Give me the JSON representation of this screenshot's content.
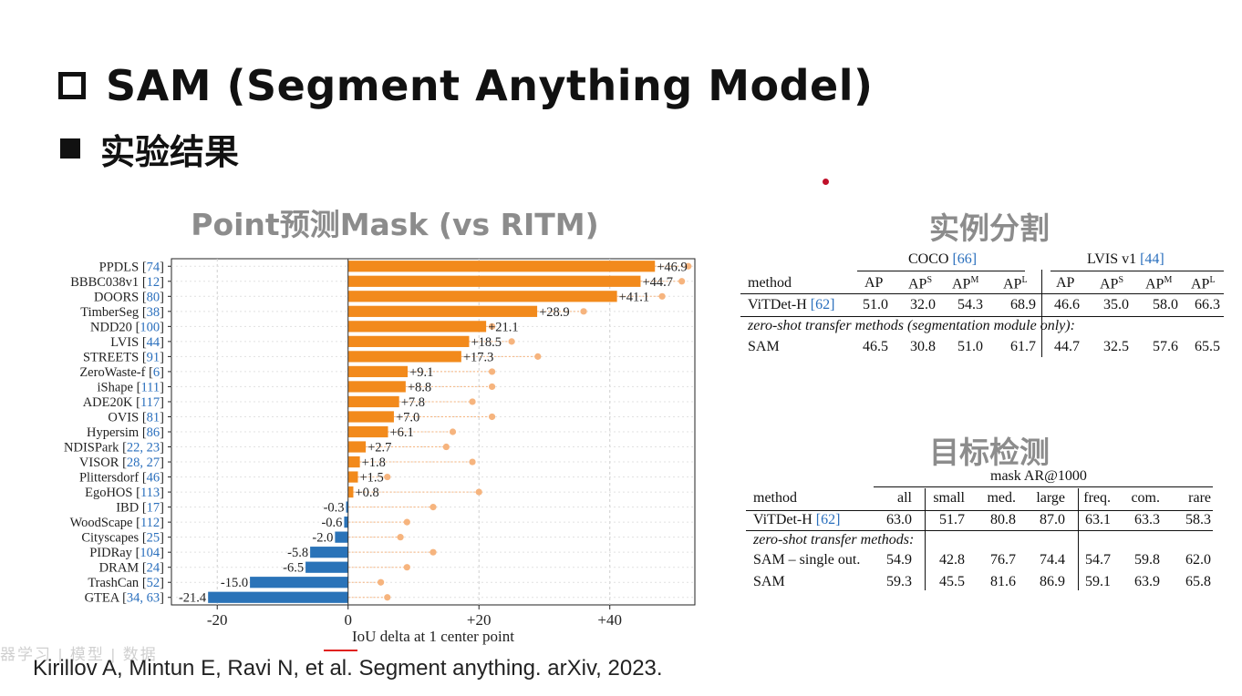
{
  "slide": {
    "title": "SAM (Segment Anything Model)",
    "subtitle": "实验结果",
    "citation": "Kirillov A, Mintun E, Ravi N, et al. Segment anything. arXiv, 2023.",
    "watermark": "器学习 | 模型 | 数据"
  },
  "chart_data": {
    "type": "bar",
    "title": "Point预测Mask (vs RITM)",
    "xlabel": "IoU delta at 1 center point",
    "xlim": [
      -27,
      53
    ],
    "xticks": [
      "-20",
      "0",
      "+20",
      "+40"
    ],
    "xtick_values": [
      -20,
      0,
      20,
      40
    ],
    "colors": {
      "positive": "#f28a1c",
      "negative": "#2a73b8",
      "dot": "#f6b47e",
      "cite": "#2a6fbd"
    },
    "categories": [
      {
        "name": "PPDLS",
        "cite": "74",
        "value": 46.9,
        "label": "+46.9",
        "dot": 52
      },
      {
        "name": "BBBC038v1",
        "cite": "12",
        "value": 44.7,
        "label": "+44.7",
        "dot": 51
      },
      {
        "name": "DOORS",
        "cite": "80",
        "value": 41.1,
        "label": "+41.1",
        "dot": 48
      },
      {
        "name": "TimberSeg",
        "cite": "38",
        "value": 28.9,
        "label": "+28.9",
        "dot": 36
      },
      {
        "name": "NDD20",
        "cite": "100",
        "value": 21.1,
        "label": "+21.1",
        "dot": 22
      },
      {
        "name": "LVIS",
        "cite": "44",
        "value": 18.5,
        "label": "+18.5",
        "dot": 25
      },
      {
        "name": "STREETS",
        "cite": "91",
        "value": 17.3,
        "label": "+17.3",
        "dot": 29
      },
      {
        "name": "ZeroWaste-f",
        "cite": "6",
        "value": 9.1,
        "label": "+9.1",
        "dot": 22
      },
      {
        "name": "iShape",
        "cite": "111",
        "value": 8.8,
        "label": "+8.8",
        "dot": 22
      },
      {
        "name": "ADE20K",
        "cite": "117",
        "value": 7.8,
        "label": "+7.8",
        "dot": 19
      },
      {
        "name": "OVIS",
        "cite": "81",
        "value": 7.0,
        "label": "+7.0",
        "dot": 22
      },
      {
        "name": "Hypersim",
        "cite": "86",
        "value": 6.1,
        "label": "+6.1",
        "dot": 16
      },
      {
        "name": "NDISPark",
        "cite": "22, 23",
        "value": 2.7,
        "label": "+2.7",
        "dot": 15
      },
      {
        "name": "VISOR",
        "cite": "28, 27",
        "value": 1.8,
        "label": "+1.8",
        "dot": 19
      },
      {
        "name": "Plittersdorf",
        "cite": "46",
        "value": 1.5,
        "label": "+1.5",
        "dot": 6
      },
      {
        "name": "EgoHOS",
        "cite": "113",
        "value": 0.8,
        "label": "+0.8",
        "dot": 20
      },
      {
        "name": "IBD",
        "cite": "17",
        "value": -0.3,
        "label": "-0.3",
        "dot": 13
      },
      {
        "name": "WoodScape",
        "cite": "112",
        "value": -0.6,
        "label": "-0.6",
        "dot": 9
      },
      {
        "name": "Cityscapes",
        "cite": "25",
        "value": -2.0,
        "label": "-2.0",
        "dot": 8
      },
      {
        "name": "PIDRay",
        "cite": "104",
        "value": -5.8,
        "label": "-5.8",
        "dot": 13
      },
      {
        "name": "DRAM",
        "cite": "24",
        "value": -6.5,
        "label": "-6.5",
        "dot": 9
      },
      {
        "name": "TrashCan",
        "cite": "52",
        "value": -15.0,
        "label": "-15.0",
        "dot": 5
      },
      {
        "name": "GTEA",
        "cite": "34, 63",
        "value": -21.4,
        "label": "-21.4",
        "dot": 6
      }
    ]
  },
  "seg_table": {
    "heading": "实例分割",
    "group_coco": "COCO",
    "group_coco_cite": "[66]",
    "group_lvis": "LVIS v1",
    "group_lvis_cite": "[44]",
    "col_method": "method",
    "col_ap": "AP",
    "sup_s": "S",
    "sup_m": "M",
    "sup_l": "L",
    "row1_method": "ViTDet-H",
    "row1_cite": "[62]",
    "row1_values": [
      "51.0",
      "32.0",
      "54.3",
      "68.9",
      "46.6",
      "35.0",
      "58.0",
      "66.3"
    ],
    "section_note": "zero-shot transfer methods (segmentation module only):",
    "row2_method": "SAM",
    "row2_values": [
      "46.5",
      "30.8",
      "51.0",
      "61.7",
      "44.7",
      "32.5",
      "57.6",
      "65.5"
    ]
  },
  "det_table": {
    "heading": "目标检测",
    "super_header": "mask AR@1000",
    "columns": [
      "method",
      "all",
      "small",
      "med.",
      "large",
      "freq.",
      "com.",
      "rare"
    ],
    "row1_method": "ViTDet-H",
    "row1_cite": "[62]",
    "row1_values": [
      "63.0",
      "51.7",
      "80.8",
      "87.0",
      "63.1",
      "63.3",
      "58.3"
    ],
    "section_note": "zero-shot transfer methods:",
    "row2_method": "SAM – single out.",
    "row2_values": [
      "54.9",
      "42.8",
      "76.7",
      "74.4",
      "54.7",
      "59.8",
      "62.0"
    ],
    "row3_method": "SAM",
    "row3_values": [
      "59.3",
      "45.5",
      "81.6",
      "86.9",
      "59.1",
      "63.9",
      "65.8"
    ]
  }
}
